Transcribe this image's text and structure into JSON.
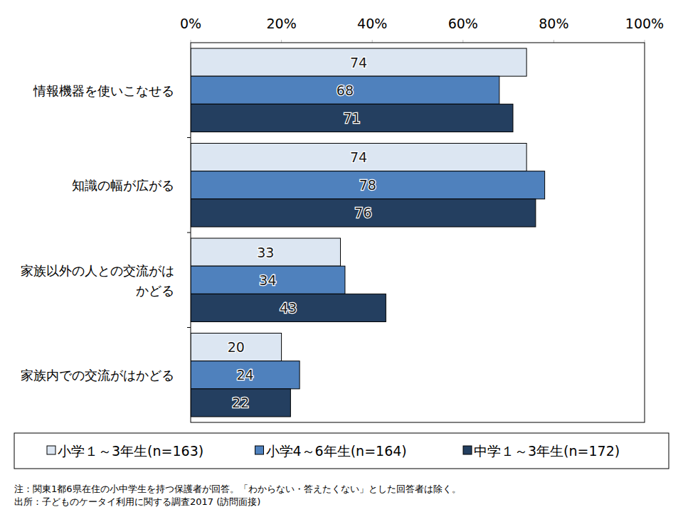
{
  "chart_data": {
    "type": "bar",
    "orientation": "horizontal",
    "data_labels": true,
    "grid": false,
    "legend": "bottom",
    "categories": [
      "情報機器を使いこなせる",
      "知識の幅が広がる",
      "家族以外の人との交流がはかどる",
      "家族内での交流がはかどる"
    ],
    "series": [
      {
        "name": "小学１～3年生(n=163)",
        "color": "#dce6f2",
        "values": [
          74,
          74,
          33,
          20
        ]
      },
      {
        "name": "小学4～6年生(n=164)",
        "color": "#4f81bd",
        "values": [
          68,
          78,
          34,
          24
        ]
      },
      {
        "name": "中学１～3年生(n=172)",
        "color": "#243f60",
        "values": [
          71,
          76,
          43,
          22
        ]
      }
    ],
    "xlim": [
      0,
      100
    ],
    "xticks": [
      {
        "value": 0,
        "label": "0%"
      },
      {
        "value": 20,
        "label": "20%"
      },
      {
        "value": 40,
        "label": "40%"
      },
      {
        "value": 60,
        "label": "60%"
      },
      {
        "value": 80,
        "label": "80%"
      },
      {
        "value": 100,
        "label": "100%"
      }
    ],
    "annotations": [
      "注：関東1都6県在住の小中学生を持つ保護者が回答。「わからない・答えたくない」とした回答者は除く。",
      "出所：子どものケータイ利用に関する調査2017 (訪問面接)"
    ]
  }
}
